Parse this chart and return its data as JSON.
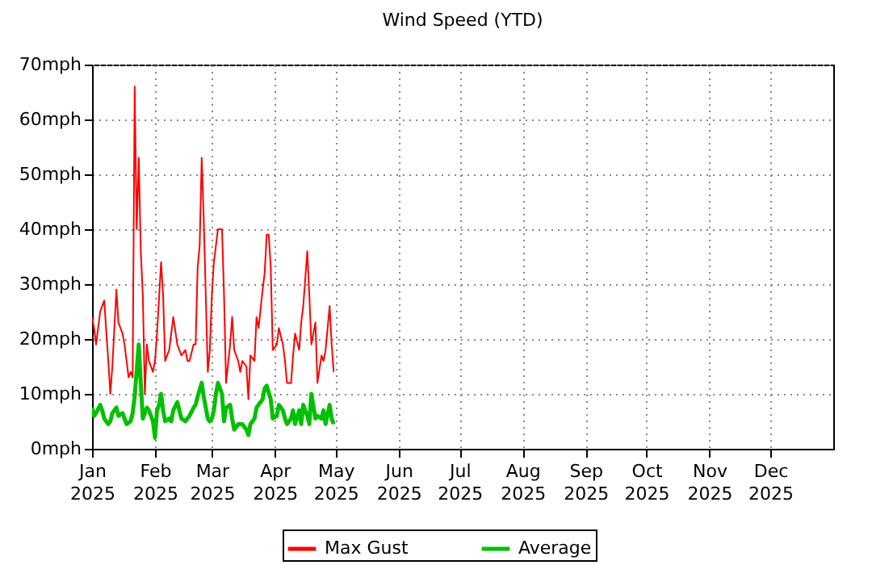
{
  "chart_data": {
    "type": "line",
    "title": "Wind Speed (YTD)",
    "series": [
      {
        "name": "Max Gust",
        "color": "#ff0000",
        "x": [
          "2025-01-01",
          "2025-01-02",
          "2025-01-03",
          "2025-01-05",
          "2025-01-06",
          "2025-01-07",
          "2025-01-09",
          "2025-01-10",
          "2025-01-11",
          "2025-01-13",
          "2025-01-14",
          "2025-01-16",
          "2025-01-17",
          "2025-01-18",
          "2025-01-19",
          "2025-01-20",
          "2025-01-21",
          "2025-01-22",
          "2025-01-23",
          "2025-01-24",
          "2025-01-25",
          "2025-01-26",
          "2025-01-27",
          "2025-01-28",
          "2025-01-29",
          "2025-01-31",
          "2025-02-01",
          "2025-02-02",
          "2025-02-04",
          "2025-02-05",
          "2025-02-06",
          "2025-02-08",
          "2025-02-09",
          "2025-02-10",
          "2025-02-12",
          "2025-02-13",
          "2025-02-14",
          "2025-02-16",
          "2025-02-17",
          "2025-02-18",
          "2025-02-20",
          "2025-02-21",
          "2025-02-22",
          "2025-02-23",
          "2025-02-24",
          "2025-02-25",
          "2025-02-26",
          "2025-02-27",
          "2025-02-28",
          "2025-03-01",
          "2025-03-02",
          "2025-03-03",
          "2025-03-04",
          "2025-03-06",
          "2025-03-07",
          "2025-03-08",
          "2025-03-10",
          "2025-03-11",
          "2025-03-12",
          "2025-03-14",
          "2025-03-15",
          "2025-03-16",
          "2025-03-18",
          "2025-03-19",
          "2025-03-20",
          "2025-03-22",
          "2025-03-23",
          "2025-03-24",
          "2025-03-26",
          "2025-03-27",
          "2025-03-28",
          "2025-03-29",
          "2025-03-30",
          "2025-03-31",
          "2025-04-02",
          "2025-04-03",
          "2025-04-05",
          "2025-04-06",
          "2025-04-07",
          "2025-04-09",
          "2025-04-10",
          "2025-04-11",
          "2025-04-13",
          "2025-04-14",
          "2025-04-15",
          "2025-04-17",
          "2025-04-18",
          "2025-04-19",
          "2025-04-21",
          "2025-04-22",
          "2025-04-24",
          "2025-04-25",
          "2025-04-26",
          "2025-04-28",
          "2025-04-29",
          "2025-04-30"
        ],
        "values": [
          24,
          22,
          19,
          25,
          26,
          27,
          16,
          10,
          15,
          29,
          23,
          21,
          19,
          16,
          13,
          14,
          13,
          66,
          40,
          53,
          36,
          28,
          10,
          19,
          16,
          14,
          16,
          21,
          34,
          28,
          16,
          18,
          21,
          24,
          19,
          18,
          17,
          18,
          16,
          16,
          19,
          19,
          33,
          37,
          53,
          42,
          28,
          14,
          18,
          28,
          34,
          37,
          40,
          40,
          28,
          12,
          19,
          24,
          18,
          16,
          14,
          16,
          15,
          9,
          17,
          16,
          24,
          22,
          29,
          32,
          39,
          39,
          33,
          18,
          19,
          22,
          19,
          16,
          12,
          12,
          17,
          21,
          18,
          23,
          26,
          36,
          28,
          19,
          23,
          12,
          17,
          16,
          18,
          26,
          19,
          14
        ]
      },
      {
        "name": "Average",
        "color": "#00c000",
        "x": [
          "2025-01-01",
          "2025-01-02",
          "2025-01-03",
          "2025-01-05",
          "2025-01-06",
          "2025-01-07",
          "2025-01-09",
          "2025-01-10",
          "2025-01-11",
          "2025-01-13",
          "2025-01-14",
          "2025-01-16",
          "2025-01-17",
          "2025-01-18",
          "2025-01-20",
          "2025-01-21",
          "2025-01-22",
          "2025-01-24",
          "2025-01-25",
          "2025-01-26",
          "2025-01-28",
          "2025-01-29",
          "2025-01-31",
          "2025-02-01",
          "2025-02-02",
          "2025-02-03",
          "2025-02-04",
          "2025-02-05",
          "2025-02-06",
          "2025-02-08",
          "2025-02-09",
          "2025-02-10",
          "2025-02-12",
          "2025-02-13",
          "2025-02-14",
          "2025-02-16",
          "2025-02-17",
          "2025-02-18",
          "2025-02-20",
          "2025-02-21",
          "2025-02-22",
          "2025-02-24",
          "2025-02-25",
          "2025-02-27",
          "2025-02-28",
          "2025-03-01",
          "2025-03-02",
          "2025-03-03",
          "2025-03-04",
          "2025-03-06",
          "2025-03-07",
          "2025-03-08",
          "2025-03-10",
          "2025-03-11",
          "2025-03-12",
          "2025-03-14",
          "2025-03-15",
          "2025-03-16",
          "2025-03-18",
          "2025-03-19",
          "2025-03-20",
          "2025-03-22",
          "2025-03-23",
          "2025-03-24",
          "2025-03-26",
          "2025-03-27",
          "2025-03-28",
          "2025-03-30",
          "2025-03-31",
          "2025-04-02",
          "2025-04-03",
          "2025-04-05",
          "2025-04-06",
          "2025-04-07",
          "2025-04-09",
          "2025-04-10",
          "2025-04-11",
          "2025-04-13",
          "2025-04-14",
          "2025-04-15",
          "2025-04-17",
          "2025-04-18",
          "2025-04-19",
          "2025-04-21",
          "2025-04-22",
          "2025-04-24",
          "2025-04-25",
          "2025-04-26",
          "2025-04-28",
          "2025-04-29",
          "2025-04-30"
        ],
        "values": [
          7.5,
          6,
          6.5,
          8,
          7,
          5.5,
          4.5,
          5,
          6.5,
          7.5,
          6,
          6.5,
          5.5,
          4.5,
          5,
          6.5,
          9.5,
          19,
          12,
          5.5,
          7.5,
          7,
          5,
          2,
          7,
          8,
          10,
          7,
          5,
          5.5,
          5,
          7,
          8.5,
          7,
          5.5,
          5,
          5.5,
          6,
          7.5,
          8,
          9.5,
          12,
          9.5,
          5.5,
          5,
          5.5,
          7,
          10,
          12,
          10,
          5,
          7.5,
          8,
          5.5,
          3.5,
          4.5,
          4.5,
          4.5,
          3.5,
          2.5,
          4.5,
          5.5,
          7.5,
          8,
          9,
          11,
          11.5,
          9,
          5.5,
          6,
          8,
          7,
          5.5,
          4.5,
          5.5,
          7,
          4.5,
          7,
          4.5,
          8,
          6,
          4.5,
          10,
          5.5,
          6,
          5.5,
          7,
          4.5,
          8,
          5.5,
          4.5
        ]
      }
    ],
    "xlim": [
      "2025-01-01",
      "2026-01-01"
    ],
    "xticks": [
      {
        "value": "2025-01-01",
        "label": "Jan 2025"
      },
      {
        "value": "2025-02-01",
        "label": "Feb 2025"
      },
      {
        "value": "2025-03-01",
        "label": "Mar 2025"
      },
      {
        "value": "2025-04-01",
        "label": "Apr 2025"
      },
      {
        "value": "2025-05-01",
        "label": "May 2025"
      },
      {
        "value": "2025-06-01",
        "label": "Jun 2025"
      },
      {
        "value": "2025-07-01",
        "label": "Jul 2025"
      },
      {
        "value": "2025-08-01",
        "label": "Aug 2025"
      },
      {
        "value": "2025-09-01",
        "label": "Sep 2025"
      },
      {
        "value": "2025-10-01",
        "label": "Oct 2025"
      },
      {
        "value": "2025-11-01",
        "label": "Nov 2025"
      },
      {
        "value": "2025-12-01",
        "label": "Dec 2025"
      }
    ],
    "ylim": [
      0,
      70
    ],
    "yticks": [
      {
        "value": 0,
        "label": "0mph"
      },
      {
        "value": 10,
        "label": "10mph"
      },
      {
        "value": 20,
        "label": "20mph"
      },
      {
        "value": 30,
        "label": "30mph"
      },
      {
        "value": 40,
        "label": "40mph"
      },
      {
        "value": 50,
        "label": "50mph"
      },
      {
        "value": 60,
        "label": "60mph"
      },
      {
        "value": 70,
        "label": "70mph"
      }
    ],
    "grid": true,
    "legend": "bottom",
    "line_style": "solid"
  }
}
